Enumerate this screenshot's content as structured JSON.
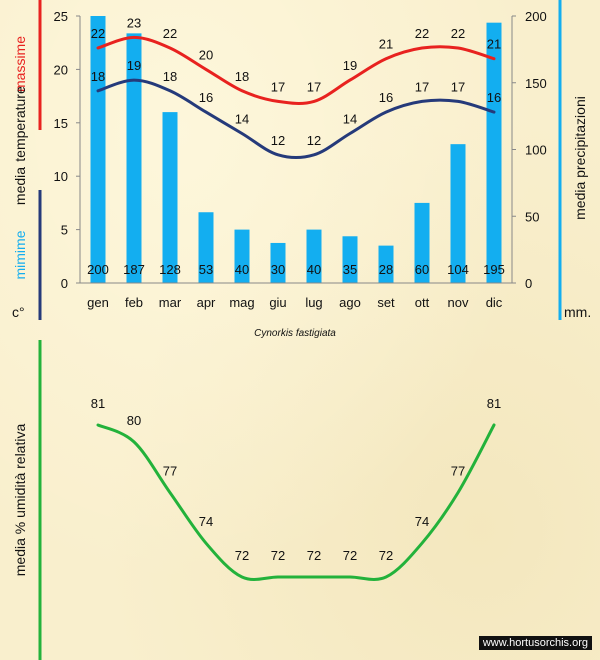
{
  "chart_data": [
    {
      "type": "bar+line",
      "title": "Cynorkis fastigiata",
      "categories": [
        "gen",
        "feb",
        "mar",
        "apr",
        "mag",
        "giu",
        "lug",
        "ago",
        "set",
        "ott",
        "nov",
        "dic"
      ],
      "series": [
        {
          "name": "massime",
          "kind": "line",
          "axis": "left",
          "values": [
            22,
            23,
            22,
            20,
            18,
            17,
            17,
            19,
            21,
            22,
            22,
            21
          ],
          "color": "#e8221f"
        },
        {
          "name": "mimime",
          "kind": "line",
          "axis": "left",
          "values": [
            18,
            19,
            18,
            16,
            14,
            12,
            12,
            14,
            16,
            17,
            17,
            16
          ],
          "color": "#253a7a"
        },
        {
          "name": "media precipitazioni",
          "kind": "bar",
          "axis": "right",
          "values": [
            200,
            187,
            128,
            53,
            40,
            30,
            40,
            35,
            28,
            60,
            104,
            195
          ],
          "color": "#13aef0"
        }
      ],
      "y_left": {
        "min": 0,
        "max": 25,
        "ticks": [
          0,
          5,
          10,
          15,
          20,
          25
        ],
        "label_parts": [
          "media",
          "temperature"
        ],
        "unit": "c°"
      },
      "y_right": {
        "min": 0,
        "max": 200,
        "ticks": [
          0,
          50,
          100,
          150,
          200
        ],
        "label": "media  precipitazioni",
        "unit": "mm."
      },
      "grid": false
    },
    {
      "type": "line",
      "categories": [
        "gen",
        "feb",
        "mar",
        "apr",
        "mag",
        "giu",
        "lug",
        "ago",
        "set",
        "ott",
        "nov",
        "dic"
      ],
      "series": [
        {
          "name": "media % umidità relativa",
          "values": [
            81,
            80,
            77,
            74,
            72,
            72,
            72,
            72,
            72,
            74,
            77,
            81
          ],
          "color": "#23b23b"
        }
      ],
      "ylabel": "media %  umidità relativa",
      "grid": false
    }
  ],
  "credit": "www.hortusorchis.org",
  "colors": {
    "red_axis": "#e8221f",
    "navy_axis": "#253a7a",
    "blue_axis": "#13aef0",
    "green_axis": "#23b23b"
  }
}
